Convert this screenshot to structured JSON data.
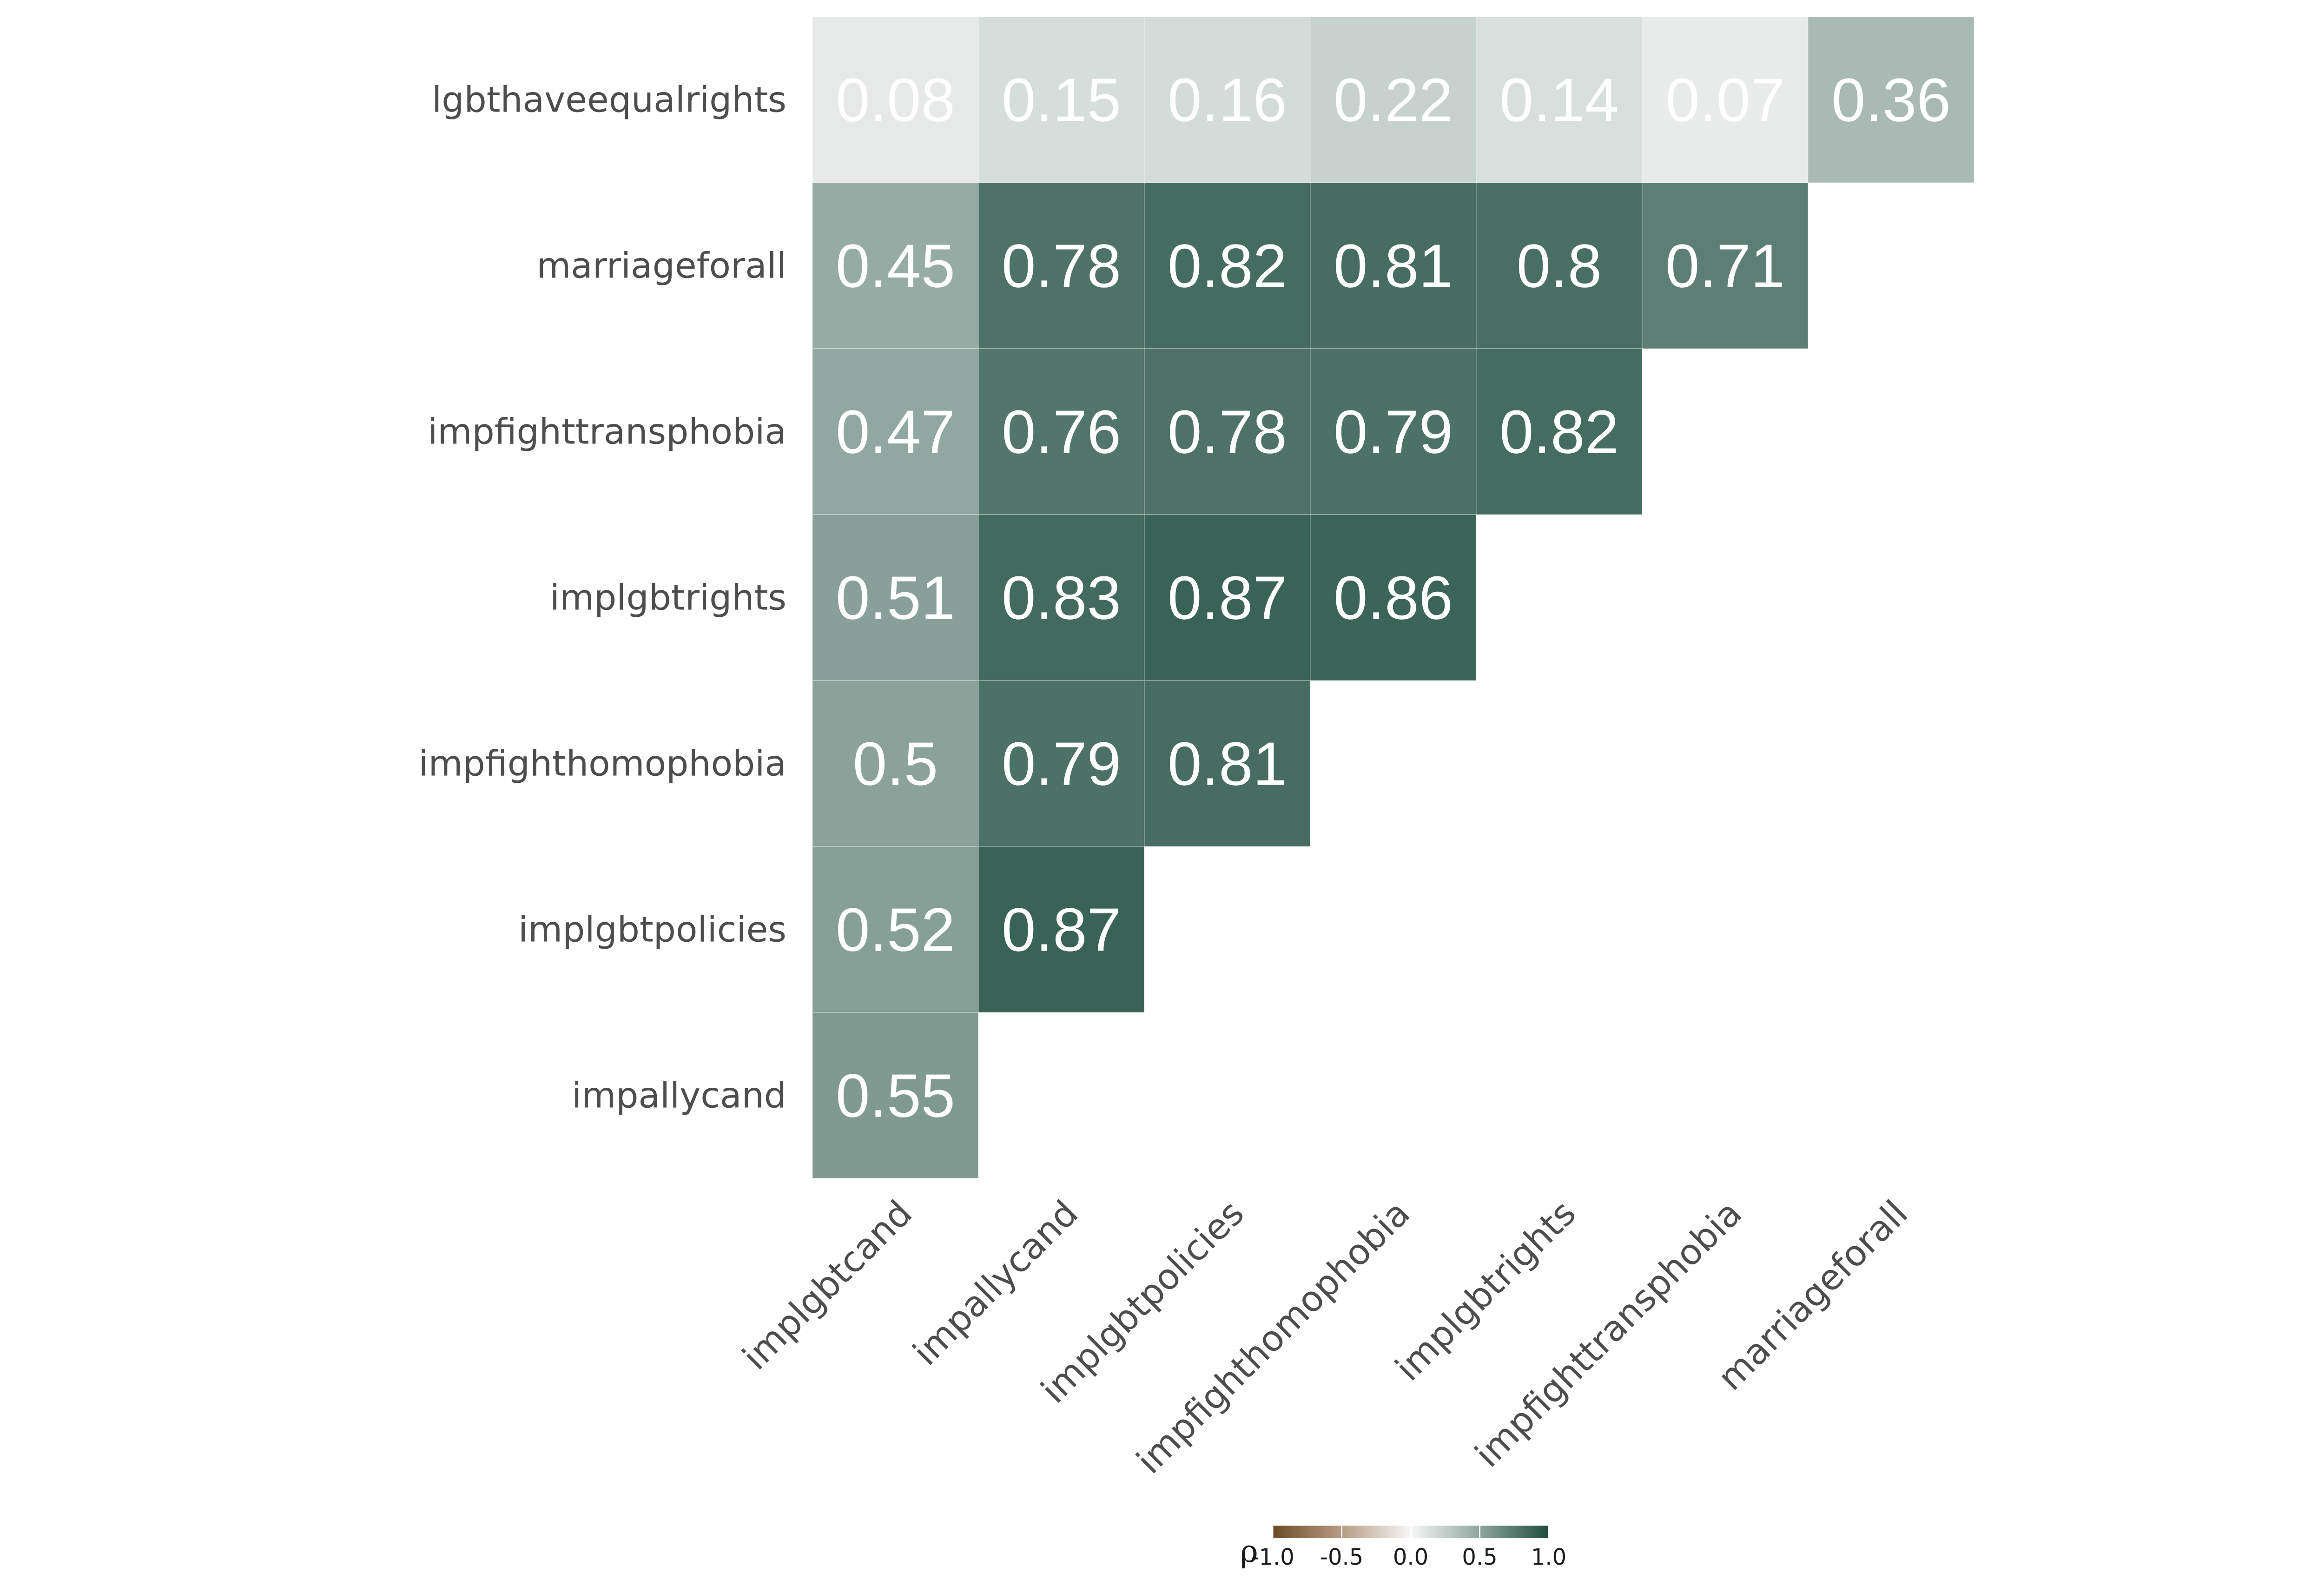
{
  "chart_data": {
    "type": "heatmap",
    "title": "",
    "xlabel": "",
    "ylabel": "",
    "x_categories": [
      "implgbtcand",
      "impallycand",
      "implgbtpolicies",
      "impfighthomophobia",
      "implgbtrights",
      "impfighttransphobia",
      "marriageforall"
    ],
    "y_categories": [
      "lgbthaveequalrights",
      "marriageforall",
      "impfighttransphobia",
      "implgbtrights",
      "impfighthomophobia",
      "implgbtpolicies",
      "impallycand"
    ],
    "values": [
      [
        0.08,
        0.15,
        0.16,
        0.22,
        0.14,
        0.07,
        0.36
      ],
      [
        0.45,
        0.78,
        0.82,
        0.81,
        0.8,
        0.71,
        null
      ],
      [
        0.47,
        0.76,
        0.78,
        0.79,
        0.82,
        null,
        null
      ],
      [
        0.51,
        0.83,
        0.87,
        0.86,
        null,
        null,
        null
      ],
      [
        0.5,
        0.79,
        0.81,
        null,
        null,
        null,
        null
      ],
      [
        0.52,
        0.87,
        null,
        null,
        null,
        null,
        null
      ],
      [
        0.55,
        null,
        null,
        null,
        null,
        null,
        null
      ]
    ],
    "legend": {
      "title": "ρ",
      "range": [
        -1.0,
        1.0
      ],
      "ticks": [
        -1.0,
        -0.5,
        0.0,
        0.5,
        1.0
      ],
      "tick_labels": [
        "-1.0",
        "-0.5",
        "0.0",
        "0.5",
        "1.0"
      ],
      "placement": "bottom"
    },
    "colors": {
      "negative": "#6b4a26",
      "neutral": "#f7f7f7",
      "positive": "#1e4d3f",
      "text": "#ffffff"
    }
  }
}
